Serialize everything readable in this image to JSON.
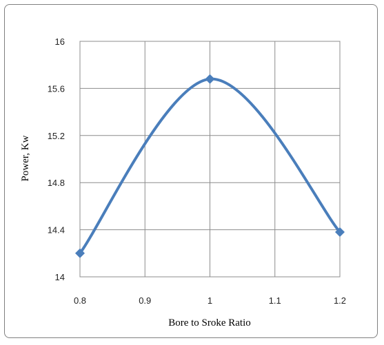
{
  "chart_data": {
    "type": "line",
    "title": "",
    "xlabel": "Bore to Sroke Ratio",
    "ylabel": "Power, Kw",
    "x": [
      0.8,
      1.0,
      1.2
    ],
    "series": [
      {
        "values": [
          14.2,
          15.68,
          14.38
        ],
        "color": "#4a7ebb",
        "marker": "diamond",
        "smooth": true
      }
    ],
    "xlim": [
      0.8,
      1.2
    ],
    "ylim": [
      14,
      16
    ],
    "xticks": [
      "0.8",
      "0.9",
      "1",
      "1.1",
      "1.2"
    ],
    "yticks": [
      "14",
      "14.4",
      "14.8",
      "15.2",
      "15.6",
      "16"
    ],
    "grid": true,
    "legend": "none"
  }
}
